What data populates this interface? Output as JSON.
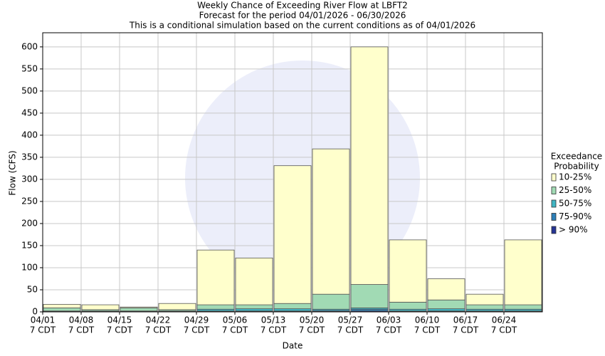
{
  "chart_data": {
    "type": "stacked_bar",
    "title_lines": [
      "Weekly Chance of Exceeding River Flow at LBFT2",
      "Forecast for the period 04/01/2026 - 06/30/2026",
      "This is a conditional simulation based on the current conditions as of 04/01/2026"
    ],
    "x_label": "Date",
    "y_label": "Flow (CFS)",
    "categories": [
      "04/01",
      "04/08",
      "04/15",
      "04/22",
      "04/29",
      "05/06",
      "05/13",
      "05/20",
      "05/27",
      "06/03",
      "06/10",
      "06/17",
      "06/24"
    ],
    "category_sublabels": [
      "7 CDT",
      "7 CDT",
      "7 CDT",
      "7 CDT",
      "7 CDT",
      "7 CDT",
      "7 CDT",
      "7 CDT",
      "7 CDT",
      "7 CDT",
      "7 CDT",
      "7 CDT",
      "7 CDT"
    ],
    "legend_title_lines": [
      "Exceedance",
      "Probability"
    ],
    "series": [
      {
        "name": "> 90%",
        "color": "#253494",
        "values": [
          0.5,
          0.5,
          0.5,
          0.5,
          1,
          1,
          1,
          1,
          2,
          1,
          1,
          1,
          1
        ]
      },
      {
        "name": "75-90%",
        "color": "#2c7fb8",
        "values": [
          0.5,
          0.5,
          0.5,
          0.5,
          1,
          1,
          1,
          2,
          4,
          1,
          1,
          1,
          1
        ]
      },
      {
        "name": "50-75%",
        "color": "#41b6c4",
        "values": [
          1,
          1,
          1,
          1,
          4,
          5,
          5,
          3,
          3,
          4,
          5,
          4,
          4
        ]
      },
      {
        "name": "25-50%",
        "color": "#a1dab4",
        "values": [
          7,
          3,
          7,
          3,
          10,
          9,
          12,
          34,
          53,
          16,
          20,
          10,
          10
        ]
      },
      {
        "name": "10-25%",
        "color": "#ffffcc",
        "values": [
          8,
          11,
          2,
          14,
          124,
          106,
          312,
          329,
          538,
          141,
          48,
          24,
          147
        ]
      }
    ],
    "ylim": [
      0,
      632
    ],
    "yticks": [
      0,
      50,
      100,
      150,
      200,
      250,
      300,
      350,
      400,
      450,
      500,
      550,
      600
    ],
    "grid": true
  }
}
